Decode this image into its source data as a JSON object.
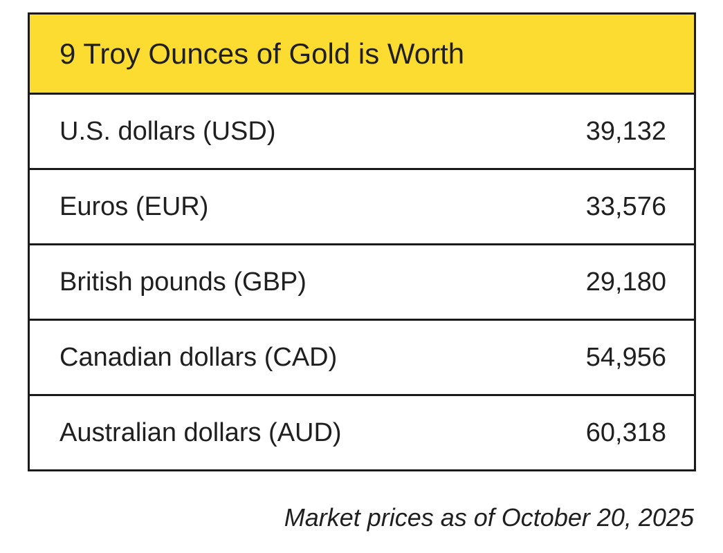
{
  "header": {
    "title": "9 Troy Ounces of Gold is Worth"
  },
  "rows": [
    {
      "currency": "U.S. dollars (USD)",
      "value": "39,132"
    },
    {
      "currency": "Euros (EUR)",
      "value": "33,576"
    },
    {
      "currency": "British pounds (GBP)",
      "value": "29,180"
    },
    {
      "currency": "Canadian dollars (CAD)",
      "value": "54,956"
    },
    {
      "currency": "Australian dollars (AUD)",
      "value": "60,318"
    }
  ],
  "footnote": "Market prices as of October 20, 2025",
  "colors": {
    "header_background": "#fddc32",
    "border": "#1a1a1a"
  }
}
